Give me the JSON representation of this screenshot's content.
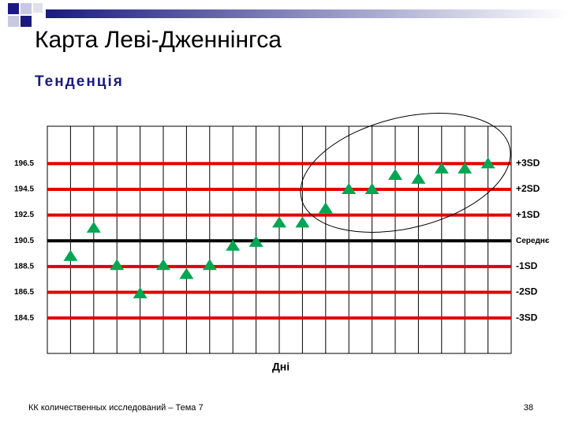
{
  "chart_data": {
    "type": "scatter",
    "title": "Карта Леві-Дженнінгса",
    "subtitle": "Тенденція",
    "x_label": "Дні",
    "x": [
      1,
      2,
      3,
      4,
      5,
      6,
      7,
      8,
      9,
      10,
      11,
      12,
      13,
      14,
      15,
      16,
      17,
      18,
      19
    ],
    "xlim": [
      0,
      20
    ],
    "series": [
      {
        "color": "#00a651",
        "values": [
          189.3,
          191.5,
          188.6,
          186.4,
          188.6,
          187.9,
          188.6,
          190.1,
          190.4,
          191.9,
          191.9,
          193.0,
          194.5,
          194.5,
          195.6,
          195.3,
          196.1,
          196.1,
          196.5
        ]
      }
    ],
    "ylim": [
      181.75,
      199.4
    ],
    "yticks": [
      196.5,
      194.5,
      192.5,
      190.5,
      188.5,
      186.5,
      184.5
    ],
    "line_labels": [
      "+3SD",
      "+2SD",
      "+1SD",
      "Середнє",
      "-1SD",
      "-2SD",
      "-3SD"
    ],
    "line_colors": [
      "#e00000",
      "#e00000",
      "#e00000",
      "#000000",
      "#e00000",
      "#e00000",
      "#e00000"
    ]
  },
  "footer": "КК количественных исследований – Тема 7",
  "page_number": 38
}
